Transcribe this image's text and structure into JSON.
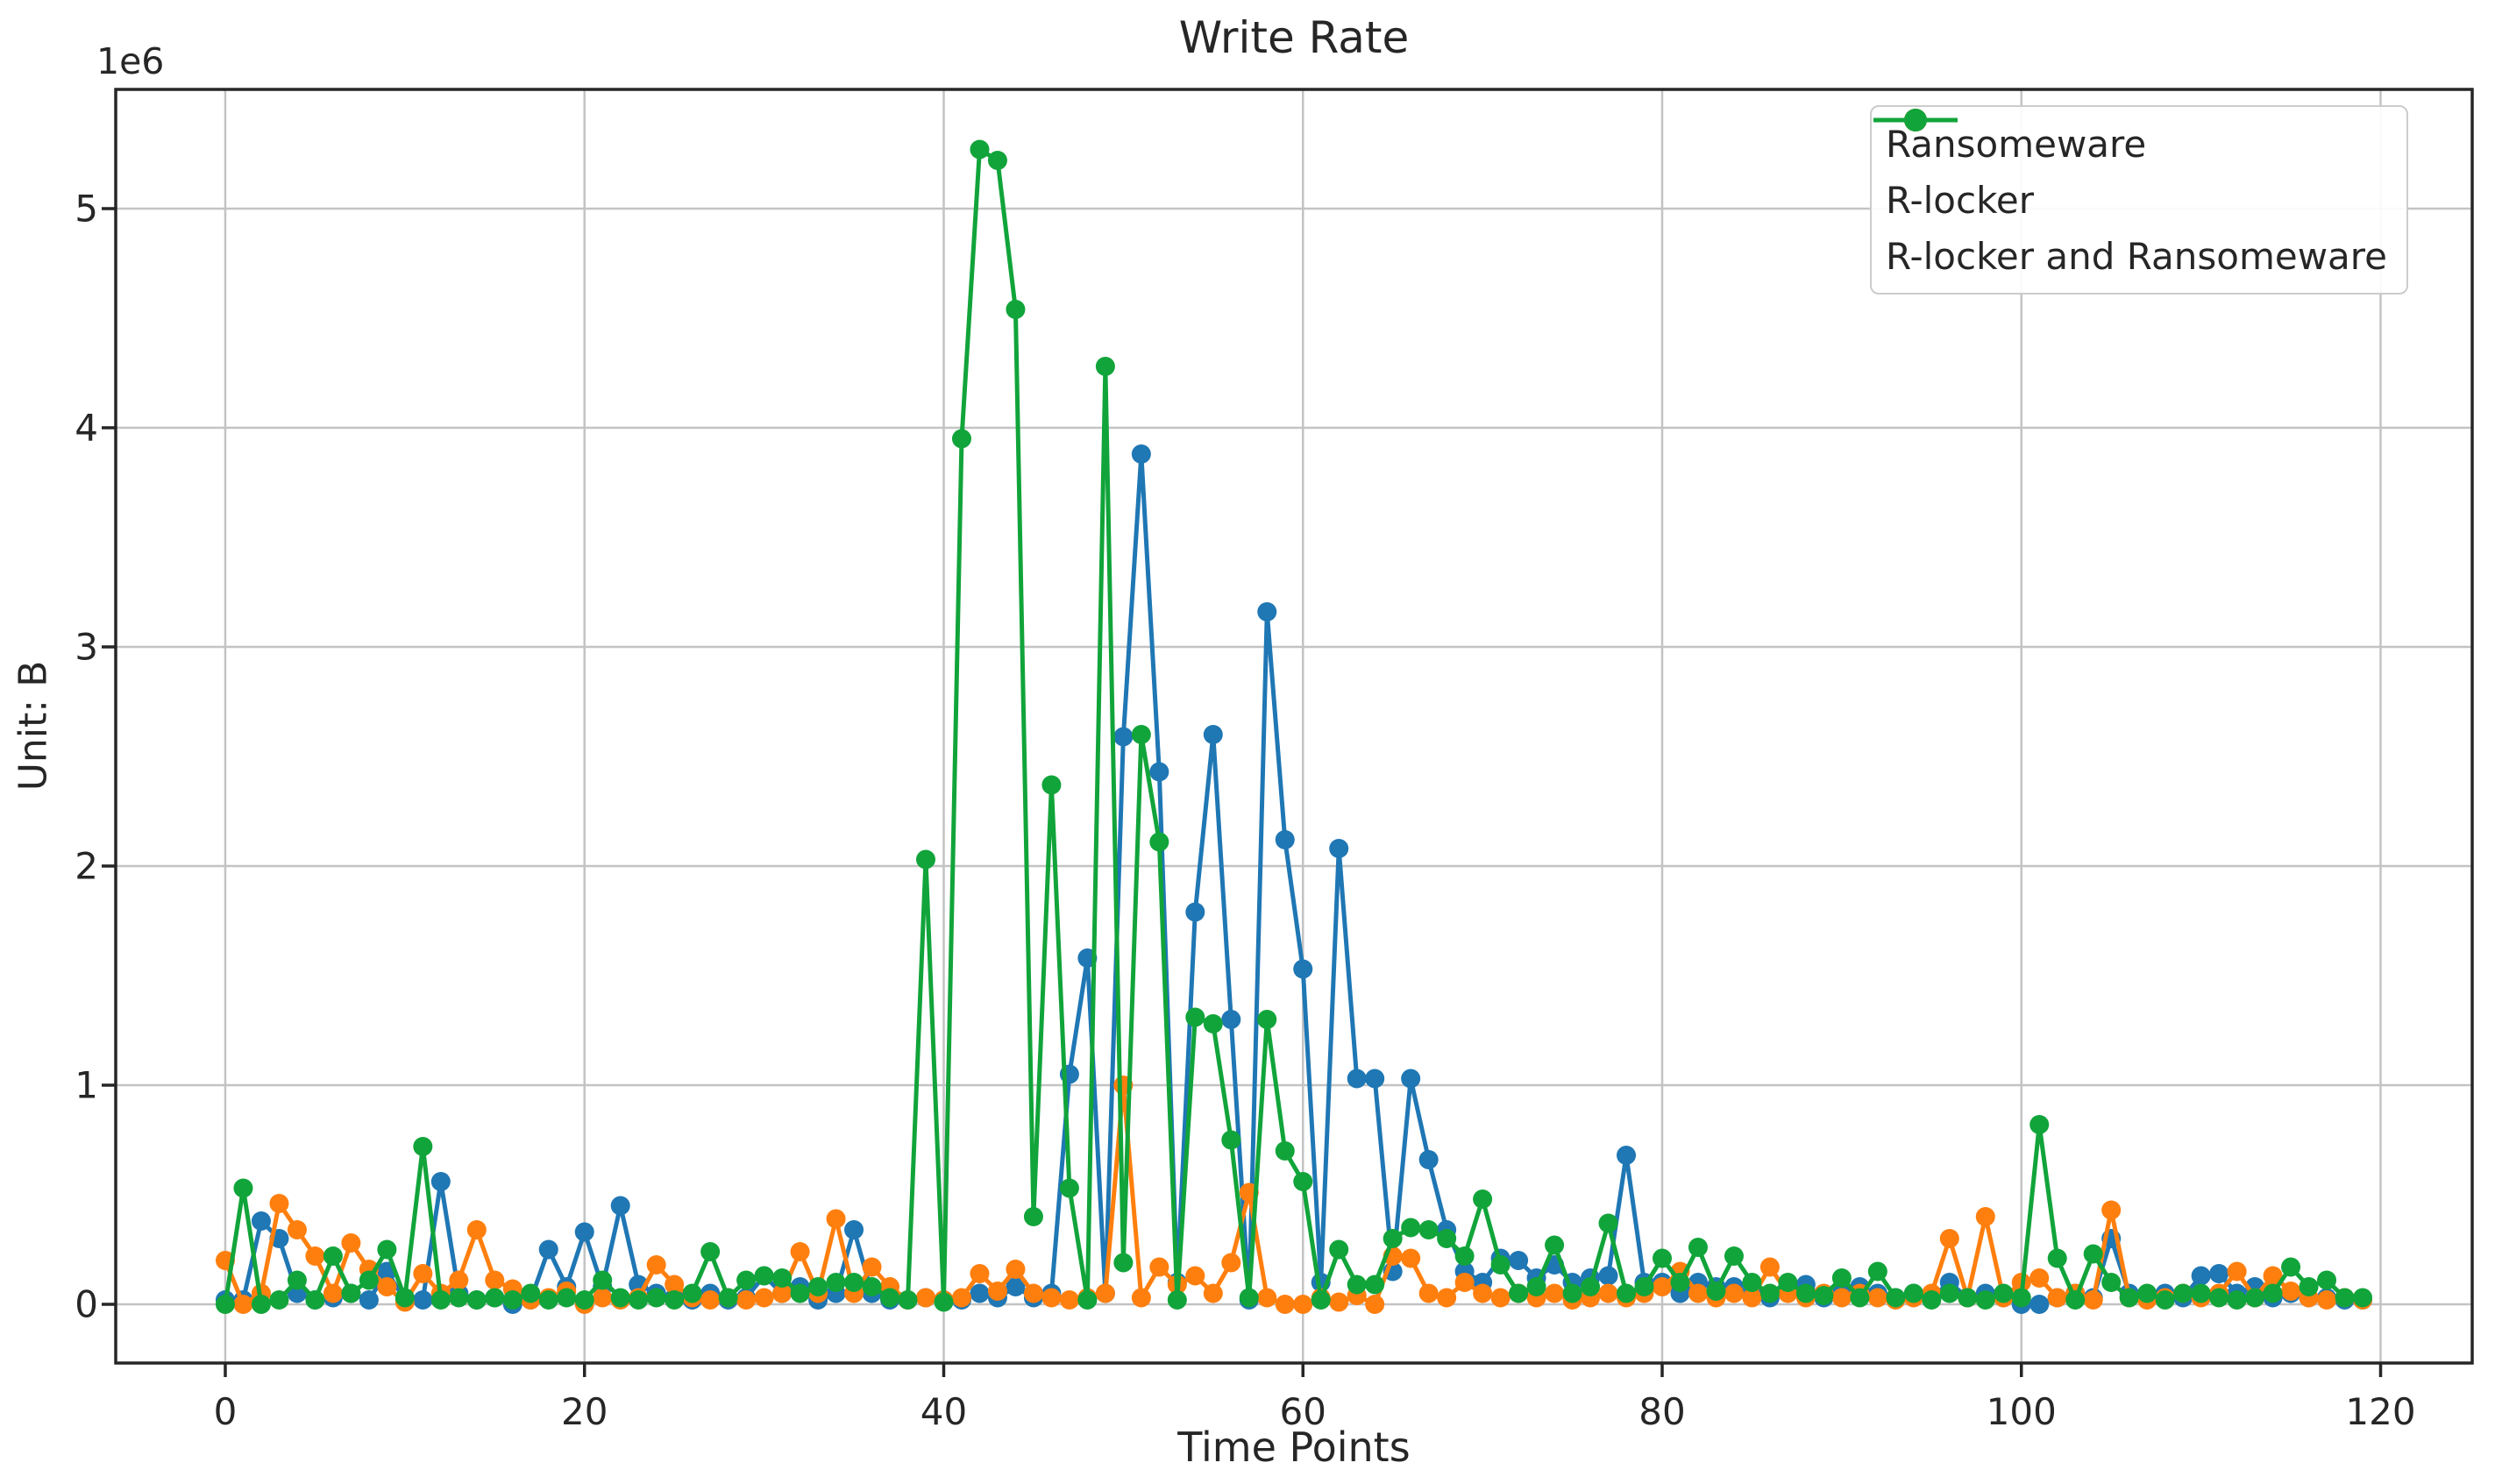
{
  "figure": {
    "background": "#ffffff",
    "spine_color": "#262626",
    "grid_color": "#c3c3c3"
  },
  "chart_data": {
    "type": "line",
    "title": "Write Rate",
    "xlabel": "Time Points",
    "ylabel": "Unit: B",
    "y_offset_label": "1e6",
    "values_scale": "1e6",
    "x_count": 120,
    "x_start": 0,
    "x_step": 1,
    "xlim": [
      -6.1,
      125.1
    ],
    "ylim": [
      -0.268,
      5.544
    ],
    "xticks": [
      0,
      20,
      40,
      60,
      80,
      100,
      120
    ],
    "yticks": [
      0,
      1,
      2,
      3,
      4,
      5
    ],
    "grid": true,
    "legend_position": "upper right",
    "series": [
      {
        "name": "Ransomeware",
        "color": "#1f77b4",
        "values": [
          0.02,
          0.02,
          0.38,
          0.3,
          0.05,
          0.02,
          0.03,
          0.05,
          0.02,
          0.15,
          0.02,
          0.02,
          0.56,
          0.05,
          0.02,
          0.03,
          0.0,
          0.02,
          0.25,
          0.08,
          0.33,
          0.08,
          0.45,
          0.09,
          0.05,
          0.03,
          0.02,
          0.05,
          0.02,
          0.03,
          0.13,
          0.05,
          0.08,
          0.02,
          0.05,
          0.34,
          0.05,
          0.02,
          0.02,
          0.03,
          0.02,
          0.02,
          0.05,
          0.03,
          0.08,
          0.03,
          0.05,
          1.05,
          1.58,
          0.05,
          2.59,
          3.88,
          2.43,
          0.1,
          1.79,
          2.6,
          1.3,
          0.02,
          3.16,
          2.12,
          1.53,
          0.1,
          2.08,
          1.03,
          1.03,
          0.15,
          1.03,
          0.66,
          0.34,
          0.15,
          0.1,
          0.21,
          0.2,
          0.12,
          0.18,
          0.1,
          0.12,
          0.13,
          0.68,
          0.1,
          0.1,
          0.05,
          0.1,
          0.08,
          0.08,
          0.05,
          0.03,
          0.08,
          0.09,
          0.03,
          0.05,
          0.08,
          0.05,
          0.03,
          0.05,
          0.03,
          0.1,
          0.03,
          0.05,
          0.03,
          0.0,
          0.0,
          0.03,
          0.05,
          0.03,
          0.3,
          0.05,
          0.03,
          0.05,
          0.03,
          0.13,
          0.14,
          0.05,
          0.08,
          0.03,
          0.05,
          0.03,
          0.03,
          0.02,
          0.02
        ]
      },
      {
        "name": "R-locker",
        "color": "#ff7f0e",
        "values": [
          0.2,
          0.0,
          0.05,
          0.46,
          0.34,
          0.22,
          0.05,
          0.28,
          0.16,
          0.08,
          0.01,
          0.14,
          0.05,
          0.11,
          0.34,
          0.11,
          0.07,
          0.02,
          0.03,
          0.06,
          0.0,
          0.03,
          0.02,
          0.03,
          0.18,
          0.09,
          0.03,
          0.02,
          0.03,
          0.02,
          0.03,
          0.05,
          0.24,
          0.05,
          0.39,
          0.05,
          0.17,
          0.08,
          0.02,
          0.03,
          0.02,
          0.03,
          0.14,
          0.06,
          0.16,
          0.05,
          0.03,
          0.02,
          0.03,
          0.05,
          1.0,
          0.03,
          0.17,
          0.09,
          0.13,
          0.05,
          0.19,
          0.51,
          0.03,
          0.0,
          0.0,
          0.03,
          0.01,
          0.04,
          0.0,
          0.22,
          0.21,
          0.05,
          0.03,
          0.1,
          0.05,
          0.03,
          0.05,
          0.03,
          0.05,
          0.02,
          0.03,
          0.05,
          0.03,
          0.05,
          0.08,
          0.15,
          0.05,
          0.03,
          0.05,
          0.03,
          0.17,
          0.05,
          0.03,
          0.05,
          0.03,
          0.05,
          0.03,
          0.02,
          0.03,
          0.05,
          0.3,
          0.03,
          0.4,
          0.03,
          0.1,
          0.12,
          0.03,
          0.05,
          0.02,
          0.43,
          0.03,
          0.02,
          0.03,
          0.05,
          0.03,
          0.05,
          0.15,
          0.03,
          0.13,
          0.06,
          0.03,
          0.02,
          0.03,
          0.02
        ]
      },
      {
        "name": "R-locker and Ransomeware",
        "color": "#11a43a",
        "values": [
          0.0,
          0.53,
          0.0,
          0.02,
          0.11,
          0.02,
          0.22,
          0.05,
          0.11,
          0.25,
          0.03,
          0.72,
          0.02,
          0.03,
          0.02,
          0.03,
          0.02,
          0.05,
          0.02,
          0.03,
          0.02,
          0.11,
          0.03,
          0.02,
          0.03,
          0.02,
          0.05,
          0.24,
          0.03,
          0.11,
          0.13,
          0.12,
          0.05,
          0.08,
          0.1,
          0.1,
          0.08,
          0.03,
          0.02,
          2.03,
          0.01,
          3.95,
          5.27,
          5.22,
          4.54,
          0.4,
          2.37,
          0.53,
          0.02,
          4.28,
          0.19,
          2.6,
          2.11,
          0.02,
          1.31,
          1.28,
          0.75,
          0.03,
          1.3,
          0.7,
          0.56,
          0.02,
          0.25,
          0.09,
          0.09,
          0.3,
          0.35,
          0.34,
          0.3,
          0.22,
          0.48,
          0.18,
          0.05,
          0.08,
          0.27,
          0.05,
          0.08,
          0.37,
          0.05,
          0.08,
          0.21,
          0.1,
          0.26,
          0.06,
          0.22,
          0.1,
          0.05,
          0.1,
          0.05,
          0.04,
          0.12,
          0.03,
          0.15,
          0.03,
          0.05,
          0.02,
          0.05,
          0.03,
          0.02,
          0.05,
          0.03,
          0.82,
          0.21,
          0.02,
          0.23,
          0.1,
          0.03,
          0.05,
          0.02,
          0.05,
          0.05,
          0.03,
          0.02,
          0.03,
          0.05,
          0.17,
          0.08,
          0.11,
          0.03,
          0.03
        ]
      }
    ]
  }
}
